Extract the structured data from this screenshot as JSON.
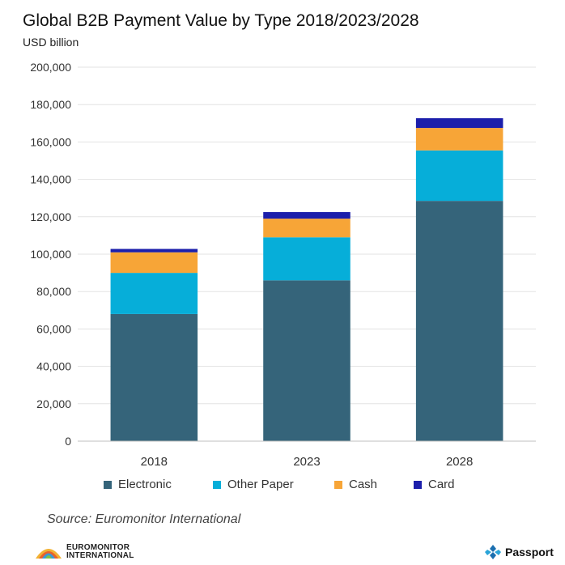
{
  "chart_data": {
    "type": "bar",
    "stacked": true,
    "title": "Global B2B Payment Value by Type 2018/2023/2028",
    "unit_label": "USD billion",
    "categories": [
      "2018",
      "2023",
      "2028"
    ],
    "series": [
      {
        "name": "Electronic",
        "color": "#35647A",
        "values": [
          68000,
          86000,
          128500
        ]
      },
      {
        "name": "Other Paper",
        "color": "#06AED9",
        "values": [
          22000,
          23000,
          27000
        ]
      },
      {
        "name": "Cash",
        "color": "#F7A537",
        "values": [
          11000,
          10000,
          12000
        ]
      },
      {
        "name": "Card",
        "color": "#1C1FAB",
        "values": [
          1800,
          3500,
          5200
        ]
      }
    ],
    "ylim": [
      0,
      200000
    ],
    "yticks": [
      "0",
      "20,000",
      "40,000",
      "60,000",
      "80,000",
      "100,000",
      "120,000",
      "140,000",
      "160,000",
      "180,000",
      "200,000"
    ],
    "grid": true,
    "legend_position": "bottom"
  },
  "source": "Source: Euromonitor International",
  "logos": {
    "euromonitor_line1": "EUROMONITOR",
    "euromonitor_line2": "INTERNATIONAL",
    "passport": "Passport"
  }
}
